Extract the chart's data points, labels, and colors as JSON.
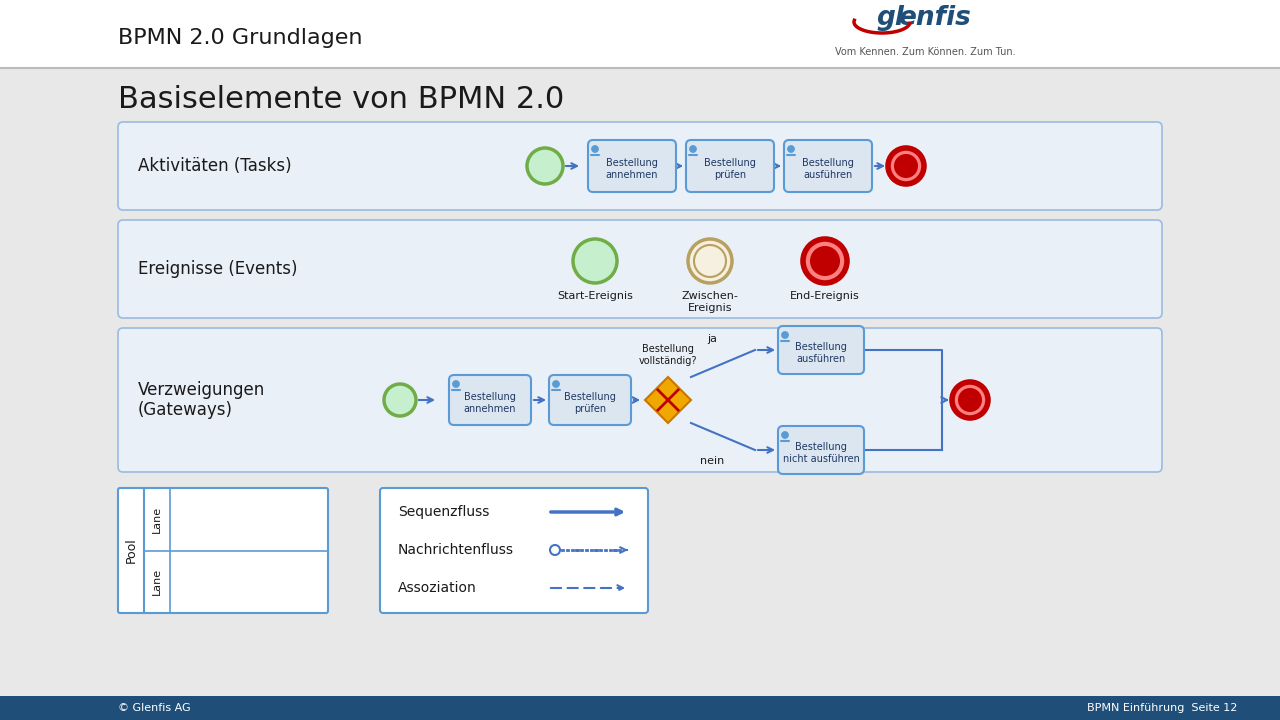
{
  "title_header": "BPMN 2.0 Grundlagen",
  "main_title": "Basiselemente von BPMN 2.0",
  "section1_label": "Aktivitäten (Tasks)",
  "section2_label": "Ereignisse (Events)",
  "section3_label": "Verzweigungen\n(Gateways)",
  "footer_left": "© Glenfis AG",
  "footer_right": "BPMN Einführung  Seite 12",
  "tagline": "Vom Kennen. Zum Können. Zum Tun.",
  "bg_color": "#e8e8e8",
  "section_bg": "#eaf0f8",
  "task_fill": "#dce6f1",
  "task_border": "#5b9bd5",
  "footer_bg": "#1f4e79",
  "footer_text": "#ffffff",
  "arrow_color": "#4472c4",
  "task_labels_s1": [
    "Bestellung\nannehmen",
    "Bestellung\nprüfen",
    "Bestellung\nausführen"
  ],
  "task_labels_s3": [
    "Bestellung\nannehmen",
    "Bestellung\nprüfen",
    "Bestellung\nausführen",
    "Bestellung\nnicht ausführen"
  ],
  "event_labels": [
    "Start-Ereignis",
    "Zwischen-\nEreignis",
    "End-Ereignis"
  ],
  "flow_labels": [
    "Sequenzfluss",
    "Nachrichtenfluss",
    "Assoziation"
  ],
  "pool_label": "Pool",
  "lane_label": "Lane",
  "gw_label": "Bestellung\nvollständig?",
  "ja_label": "ja",
  "nein_label": "nein"
}
